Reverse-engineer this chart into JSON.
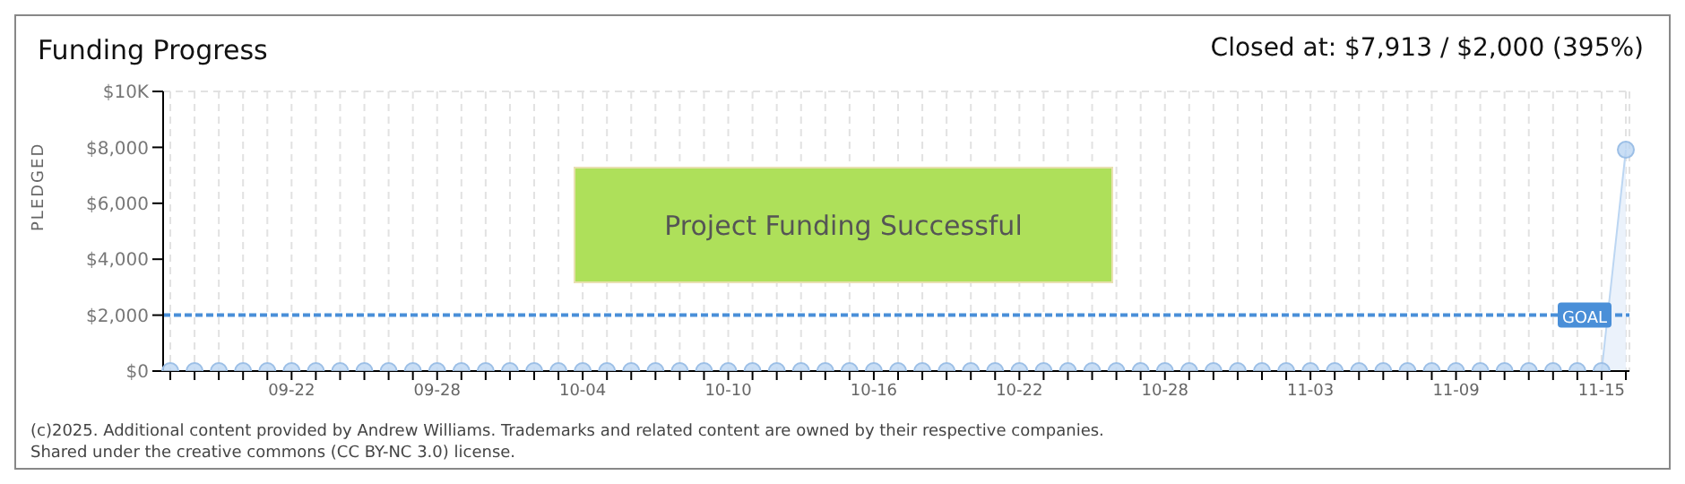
{
  "chart_data": {
    "type": "area",
    "title": "Funding Progress",
    "subtitle": "Closed at: $7,913 / $2,000 (395%)",
    "ylabel": "PLEDGED",
    "categories": [
      null,
      null,
      null,
      null,
      null,
      "09-22",
      null,
      null,
      null,
      null,
      null,
      "09-28",
      null,
      null,
      null,
      null,
      null,
      "10-04",
      null,
      null,
      null,
      null,
      null,
      "10-10",
      null,
      null,
      null,
      null,
      null,
      "10-16",
      null,
      null,
      null,
      null,
      null,
      "10-22",
      null,
      null,
      null,
      null,
      null,
      "10-28",
      null,
      null,
      null,
      null,
      null,
      "11-03",
      null,
      null,
      null,
      null,
      null,
      "11-09",
      null,
      null,
      null,
      null,
      null,
      "11-15",
      null
    ],
    "series": [
      {
        "color": "#bcd6f2",
        "values": [
          0,
          0,
          0,
          0,
          0,
          0,
          0,
          0,
          0,
          0,
          0,
          0,
          0,
          0,
          0,
          0,
          0,
          0,
          0,
          0,
          0,
          0,
          0,
          0,
          0,
          0,
          0,
          0,
          0,
          0,
          0,
          0,
          0,
          0,
          0,
          0,
          0,
          0,
          0,
          0,
          0,
          0,
          0,
          0,
          0,
          0,
          0,
          0,
          0,
          0,
          0,
          0,
          0,
          0,
          0,
          0,
          0,
          0,
          0,
          0,
          7913
        ]
      }
    ],
    "ylim": [
      0,
      10000
    ],
    "yticks": [
      {
        "value": 0,
        "label": "$0"
      },
      {
        "value": 2000,
        "label": "$2,000"
      },
      {
        "value": 4000,
        "label": "$4,000"
      },
      {
        "value": 6000,
        "label": "$6,000"
      },
      {
        "value": 8000,
        "label": "$8,000"
      },
      {
        "value": 10000,
        "label": "$10K"
      }
    ],
    "grid": true,
    "marker": "circle",
    "legend": false,
    "ref_lines": [
      {
        "axis": "y",
        "value": 2000,
        "label": "GOAL",
        "color": "#4a8fd8",
        "line_style": "dashed"
      }
    ],
    "annotations": [
      "Project Funding Successful",
      "(c)2025. Additional content provided by Andrew Williams. Trademarks and related content are owned by their respective companies.",
      "Shared under the creative commons (CC BY-NC 3.0) license."
    ]
  }
}
